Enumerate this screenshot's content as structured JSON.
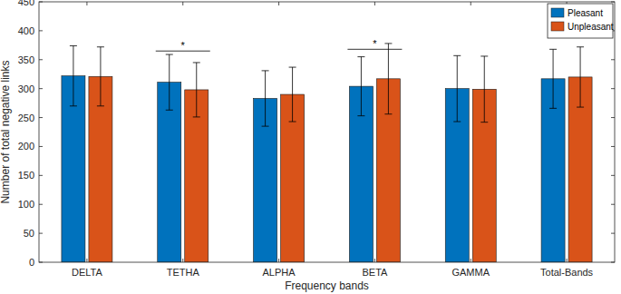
{
  "chart_data": {
    "type": "bar",
    "x_label": "Frequency bands",
    "y_label": "Number of total negative links",
    "categories": [
      "DELTA",
      "TETHA",
      "ALPHA",
      "BETA",
      "GAMMA",
      "Total-Bands"
    ],
    "series": [
      {
        "name": "Pleasant",
        "color": "#0072bd",
        "values": [
          322,
          311,
          283,
          304,
          300,
          317
        ],
        "errors": [
          52,
          48,
          48,
          51,
          57,
          51
        ]
      },
      {
        "name": "Unpleasant",
        "color": "#d95319",
        "values": [
          321,
          298,
          290,
          317,
          299,
          320
        ],
        "errors": [
          51,
          47,
          47,
          61,
          57,
          52
        ]
      }
    ],
    "ylim": [
      0,
      450
    ],
    "yticks": [
      0,
      50,
      100,
      150,
      200,
      250,
      300,
      350,
      400,
      450
    ],
    "legend": "top-right",
    "annotations": [
      {
        "text": "*",
        "category": "TETHA",
        "y": 365
      },
      {
        "text": "*",
        "category": "BETA",
        "y": 368
      }
    ]
  }
}
